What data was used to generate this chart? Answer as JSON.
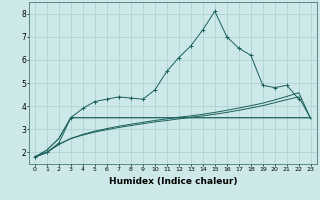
{
  "background_color": "#cce8e8",
  "grid_color": "#aacece",
  "line_color": "#1a5f5a",
  "line_color2": "#1a6060",
  "x_values": [
    0,
    1,
    2,
    3,
    4,
    5,
    6,
    7,
    8,
    9,
    10,
    11,
    12,
    13,
    14,
    15,
    16,
    17,
    18,
    19,
    20,
    21,
    22,
    23
  ],
  "main_y": [
    1.8,
    2.0,
    2.4,
    3.5,
    3.9,
    4.2,
    4.3,
    4.4,
    4.35,
    4.3,
    4.7,
    5.5,
    6.1,
    6.6,
    7.3,
    8.1,
    7.0,
    6.5,
    6.2,
    4.9,
    4.8,
    4.9,
    4.3,
    null
  ],
  "flat_y": [
    1.8,
    2.1,
    2.6,
    3.5,
    3.5,
    3.5,
    3.5,
    3.5,
    3.5,
    3.5,
    3.5,
    3.5,
    3.5,
    3.5,
    3.5,
    3.5,
    3.5,
    3.5,
    3.5,
    3.5,
    3.5,
    3.5,
    3.5,
    3.5
  ],
  "rise1_y": [
    1.8,
    2.0,
    2.35,
    2.6,
    2.75,
    2.88,
    2.98,
    3.08,
    3.16,
    3.24,
    3.32,
    3.38,
    3.45,
    3.52,
    3.58,
    3.65,
    3.73,
    3.82,
    3.92,
    4.02,
    4.15,
    4.28,
    4.4,
    3.45
  ],
  "rise2_y": [
    1.8,
    2.0,
    2.35,
    2.6,
    2.78,
    2.92,
    3.03,
    3.13,
    3.22,
    3.3,
    3.38,
    3.45,
    3.52,
    3.58,
    3.65,
    3.73,
    3.82,
    3.92,
    4.02,
    4.13,
    4.27,
    4.42,
    4.58,
    3.45
  ],
  "xlabel": "Humidex (Indice chaleur)",
  "ylim": [
    1.5,
    8.5
  ],
  "xlim": [
    -0.5,
    23.5
  ],
  "yticks": [
    2,
    3,
    4,
    5,
    6,
    7,
    8
  ],
  "xticks": [
    0,
    1,
    2,
    3,
    4,
    5,
    6,
    7,
    8,
    9,
    10,
    11,
    12,
    13,
    14,
    15,
    16,
    17,
    18,
    19,
    20,
    21,
    22,
    23
  ]
}
